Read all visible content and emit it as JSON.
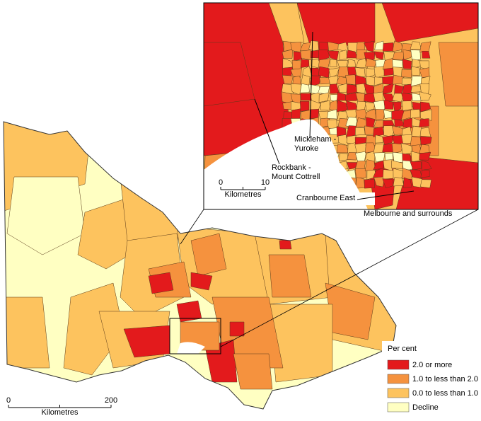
{
  "inset": {
    "title": "Melbourne and surrounds",
    "labels": [
      {
        "lines": [
          "Mickleham -",
          "Yuroke"
        ]
      },
      {
        "lines": [
          "Rockbank -",
          "Mount Cottrell"
        ]
      },
      {
        "lines": [
          "Cranbourne East"
        ]
      }
    ],
    "scale": {
      "start": 0,
      "end": 10,
      "unit": "Kilometres"
    }
  },
  "scale": {
    "start": 0,
    "end": 200,
    "unit": "Kilometres"
  },
  "legend": {
    "title": "Per cent",
    "items": [
      {
        "label": "2.0 or more",
        "color": "#e31a1c"
      },
      {
        "label": "1.0 to less than 2.0",
        "color": "#f5923e"
      },
      {
        "label": "0.0 to less than 1.0",
        "color": "#fdc35e"
      },
      {
        "label": "Decline",
        "color": "#ffffc2"
      }
    ]
  }
}
